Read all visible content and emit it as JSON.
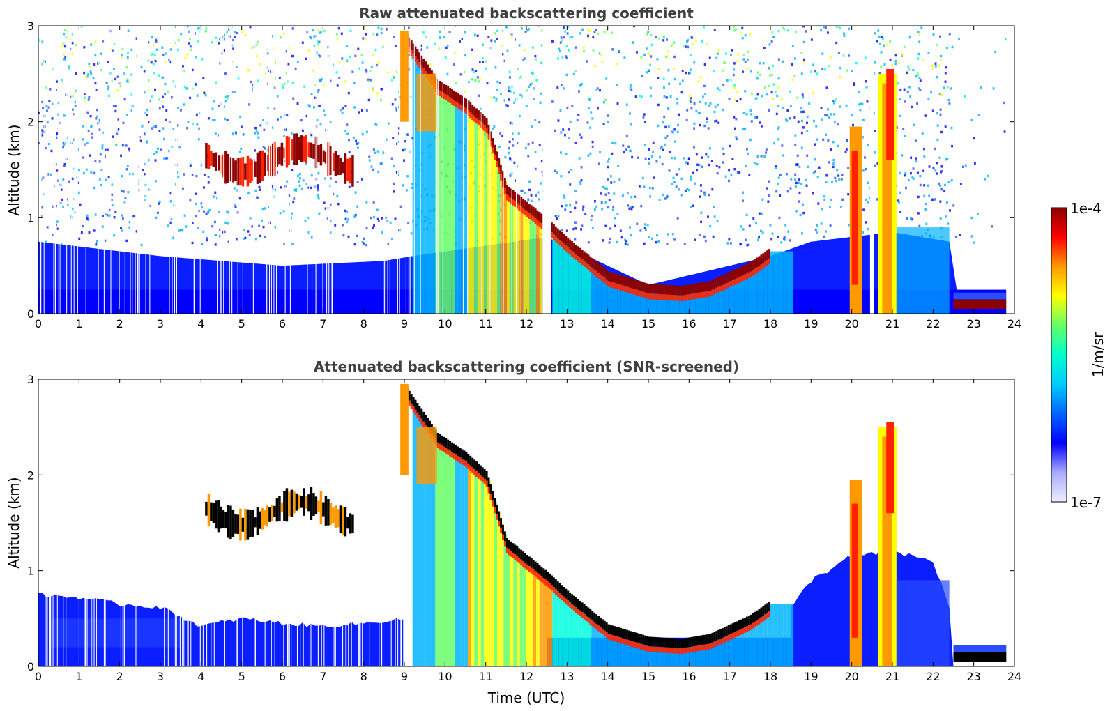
{
  "chart_data": [
    {
      "type": "heatmap",
      "title": "Raw attenuated backscattering coefficient",
      "xlabel": "",
      "ylabel": "Altitude (km)",
      "xlim": [
        0,
        24
      ],
      "ylim": [
        0,
        3
      ],
      "xticks": [
        "0",
        "1",
        "2",
        "3",
        "4",
        "5",
        "6",
        "7",
        "8",
        "9",
        "10",
        "11",
        "12",
        "13",
        "14",
        "15",
        "16",
        "17",
        "18",
        "19",
        "20",
        "21",
        "22",
        "23",
        "24"
      ],
      "yticks": [
        "0",
        "1",
        "2",
        "3"
      ],
      "features": [
        {
          "name": "boundary layer (surface to ~0.6 km)",
          "x_range": [
            0,
            8.5
          ],
          "altitude_km": [
            0,
            0.6
          ],
          "level": "low-mid"
        },
        {
          "name": "elevated cloud layer",
          "x_range": [
            4.1,
            7.7
          ],
          "altitude_km": [
            1.45,
            1.95
          ],
          "level": "high"
        },
        {
          "name": "descending cloud base",
          "x": [
            9.0,
            9.8,
            10.5,
            11.0,
            11.5,
            12.5,
            13.0,
            14.0,
            15.0,
            15.8,
            16.5,
            17.0,
            17.5,
            18.0
          ],
          "altitude_km": [
            2.9,
            2.4,
            2.2,
            2.0,
            1.3,
            0.95,
            0.75,
            0.4,
            0.27,
            0.25,
            0.3,
            0.4,
            0.5,
            0.65
          ]
        },
        {
          "name": "cloud columns near 20-21 UTC",
          "x_range": [
            19.9,
            21.1
          ],
          "altitude_km": [
            0,
            2.5
          ],
          "level": "high"
        },
        {
          "name": "low cloud after 22.5 UTC",
          "x_range": [
            22.5,
            23.8
          ],
          "altitude_km": [
            0.05,
            0.2
          ],
          "level": "high"
        }
      ],
      "data_gaps": [
        [
          12.4,
          12.6
        ],
        [
          20.45,
          20.55
        ],
        [
          23.8,
          24
        ]
      ]
    },
    {
      "type": "heatmap",
      "title": "Attenuated backscattering coefficient (SNR-screened)",
      "xlabel": "Time (UTC)",
      "ylabel": "Altitude (km)",
      "xlim": [
        0,
        24
      ],
      "ylim": [
        0,
        3
      ],
      "xticks": [
        "0",
        "1",
        "2",
        "3",
        "4",
        "5",
        "6",
        "7",
        "8",
        "9",
        "10",
        "11",
        "12",
        "13",
        "14",
        "15",
        "16",
        "17",
        "18",
        "19",
        "20",
        "21",
        "22",
        "23",
        "24"
      ],
      "yticks": [
        "0",
        "1",
        "2",
        "3"
      ],
      "features": [
        {
          "name": "boundary layer",
          "x_range": [
            0,
            9.0
          ],
          "altitude_km": [
            0,
            0.75
          ],
          "level": "low"
        },
        {
          "name": "elevated cloud layer",
          "x_range": [
            4.1,
            7.7
          ],
          "altitude_km": [
            1.45,
            1.95
          ],
          "level": "very high"
        },
        {
          "name": "descending cloud base",
          "x": [
            9.0,
            9.8,
            10.5,
            11.0,
            11.5,
            12.5,
            13.0,
            14.0,
            15.0,
            15.8,
            16.5,
            17.0,
            17.5,
            18.0
          ],
          "altitude_km": [
            2.9,
            2.4,
            2.2,
            2.0,
            1.3,
            0.95,
            0.75,
            0.4,
            0.27,
            0.25,
            0.3,
            0.4,
            0.5,
            0.65
          ]
        },
        {
          "name": "aerosol dome",
          "x_range": [
            18.5,
            22.5
          ],
          "altitude_km": [
            0,
            1.2
          ],
          "level": "low"
        },
        {
          "name": "cloud columns near 20-21 UTC",
          "x_range": [
            19.9,
            21.1
          ],
          "altitude_km": [
            0,
            2.5
          ],
          "level": "high"
        },
        {
          "name": "low cloud after 22.5 UTC",
          "x_range": [
            22.5,
            23.8
          ],
          "altitude_km": [
            0.05,
            0.2
          ],
          "level": "very high"
        }
      ]
    }
  ],
  "colorbar": {
    "label": "1/m/sr",
    "max_label": "1e-4",
    "min_label": "1e-7",
    "scale": "log",
    "colormap": [
      "#eeeeff",
      "#aaaaff",
      "#0000ff",
      "#0066ff",
      "#00ccff",
      "#00ffcc",
      "#66ff66",
      "#ffff00",
      "#ff9900",
      "#ff0000",
      "#880000"
    ]
  }
}
